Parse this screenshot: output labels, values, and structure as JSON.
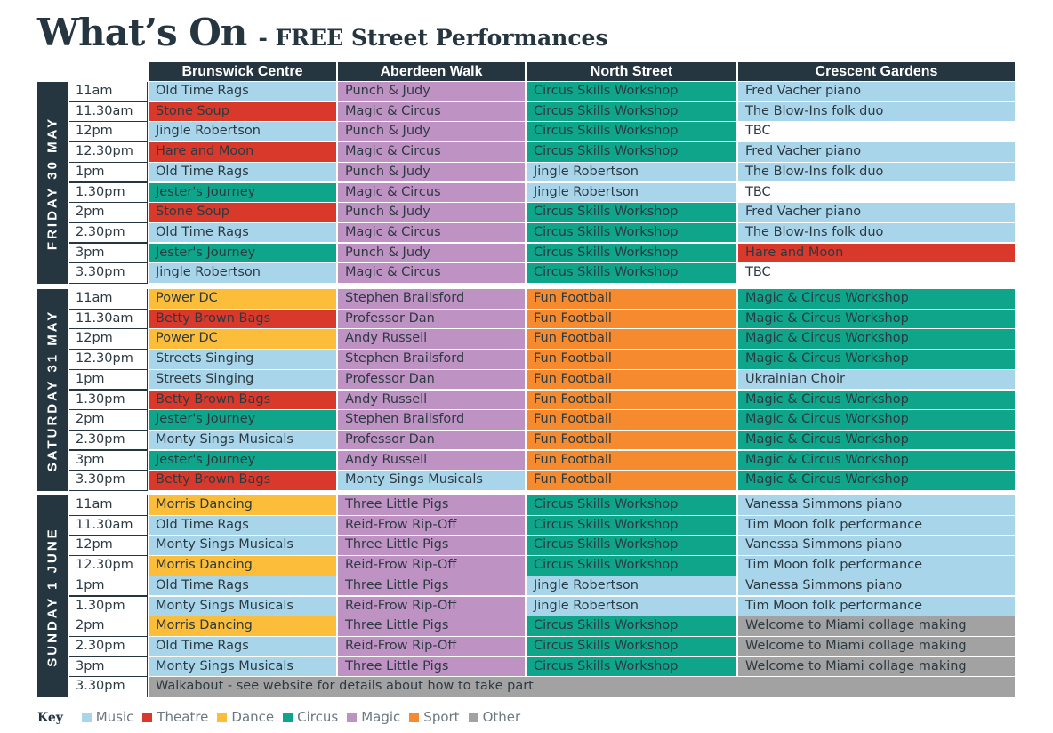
{
  "title": "What’s On",
  "subtitle": "- FREE Street Performances",
  "venues": [
    "Brunswick Centre",
    "Aberdeen Walk",
    "North Street",
    "Crescent Gardens"
  ],
  "colors": {
    "music": "#a8d5ea",
    "theatre": "#d9392b",
    "dance": "#fbbd3a",
    "circus": "#0fa58b",
    "magic": "#bf92c4",
    "sport": "#f58a2e",
    "other": "#a3a2a3",
    "header": "#263640"
  },
  "days": [
    {
      "label": "FRIDAY 30 MAY",
      "rows": [
        {
          "time": "11am",
          "cells": [
            {
              "text": "Old Time Rags",
              "cat": "music"
            },
            {
              "text": "Punch & Judy",
              "cat": "magic"
            },
            {
              "text": "Circus Skills Workshop",
              "cat": "circus"
            },
            {
              "text": "Fred Vacher piano",
              "cat": "music"
            }
          ]
        },
        {
          "time": "11.30am",
          "cells": [
            {
              "text": "Stone Soup",
              "cat": "theatre"
            },
            {
              "text": "Magic & Circus",
              "cat": "magic"
            },
            {
              "text": "Circus Skills Workshop",
              "cat": "circus"
            },
            {
              "text": "The Blow-Ins folk duo",
              "cat": "music"
            }
          ]
        },
        {
          "time": "12pm",
          "cells": [
            {
              "text": "Jingle Robertson",
              "cat": "music"
            },
            {
              "text": "Punch & Judy",
              "cat": "magic"
            },
            {
              "text": "Circus Skills Workshop",
              "cat": "circus"
            },
            {
              "text": "TBC",
              "cat": "blank"
            }
          ]
        },
        {
          "time": "12.30pm",
          "cells": [
            {
              "text": "Hare and Moon",
              "cat": "theatre"
            },
            {
              "text": "Magic & Circus",
              "cat": "magic"
            },
            {
              "text": "Circus Skills Workshop",
              "cat": "circus"
            },
            {
              "text": "Fred Vacher piano",
              "cat": "music"
            }
          ]
        },
        {
          "time": "1pm",
          "cells": [
            {
              "text": "Old Time Rags",
              "cat": "music"
            },
            {
              "text": "Punch & Judy",
              "cat": "magic"
            },
            {
              "text": "Jingle Robertson",
              "cat": "music"
            },
            {
              "text": "The Blow-Ins folk duo",
              "cat": "music"
            }
          ]
        },
        {
          "time": "1.30pm",
          "cells": [
            {
              "text": "Jester's Journey",
              "cat": "circus"
            },
            {
              "text": "Magic & Circus",
              "cat": "magic"
            },
            {
              "text": "Jingle Robertson",
              "cat": "music"
            },
            {
              "text": "TBC",
              "cat": "blank"
            }
          ]
        },
        {
          "time": "2pm",
          "cells": [
            {
              "text": "Stone Soup",
              "cat": "theatre"
            },
            {
              "text": "Punch & Judy",
              "cat": "magic"
            },
            {
              "text": "Circus Skills Workshop",
              "cat": "circus"
            },
            {
              "text": "Fred Vacher piano",
              "cat": "music"
            }
          ]
        },
        {
          "time": "2.30pm",
          "cells": [
            {
              "text": "Old Time Rags",
              "cat": "music"
            },
            {
              "text": "Magic & Circus",
              "cat": "magic"
            },
            {
              "text": "Circus Skills Workshop",
              "cat": "circus"
            },
            {
              "text": "The Blow-Ins folk duo",
              "cat": "music"
            }
          ]
        },
        {
          "time": "3pm",
          "cells": [
            {
              "text": "Jester's Journey",
              "cat": "circus"
            },
            {
              "text": "Punch & Judy",
              "cat": "magic"
            },
            {
              "text": "Circus Skills Workshop",
              "cat": "circus"
            },
            {
              "text": "Hare and Moon",
              "cat": "theatre"
            }
          ]
        },
        {
          "time": "3.30pm",
          "cells": [
            {
              "text": "Jingle Robertson",
              "cat": "music"
            },
            {
              "text": "Magic & Circus",
              "cat": "magic"
            },
            {
              "text": "Circus Skills Workshop",
              "cat": "circus"
            },
            {
              "text": "TBC",
              "cat": "blank"
            }
          ]
        }
      ]
    },
    {
      "label": "SATURDAY 31 MAY",
      "rows": [
        {
          "time": "11am",
          "cells": [
            {
              "text": "Power DC",
              "cat": "dance"
            },
            {
              "text": "Stephen Brailsford",
              "cat": "magic"
            },
            {
              "text": "Fun Football",
              "cat": "sport"
            },
            {
              "text": "Magic & Circus Workshop",
              "cat": "circus"
            }
          ]
        },
        {
          "time": "11.30am",
          "cells": [
            {
              "text": "Betty Brown Bags",
              "cat": "theatre"
            },
            {
              "text": "Professor Dan",
              "cat": "magic"
            },
            {
              "text": "Fun Football",
              "cat": "sport"
            },
            {
              "text": "Magic & Circus Workshop",
              "cat": "circus"
            }
          ]
        },
        {
          "time": "12pm",
          "cells": [
            {
              "text": "Power DC",
              "cat": "dance"
            },
            {
              "text": "Andy Russell",
              "cat": "magic"
            },
            {
              "text": "Fun Football",
              "cat": "sport"
            },
            {
              "text": "Magic & Circus Workshop",
              "cat": "circus"
            }
          ]
        },
        {
          "time": "12.30pm",
          "cells": [
            {
              "text": "Streets Singing",
              "cat": "music"
            },
            {
              "text": "Stephen Brailsford",
              "cat": "magic"
            },
            {
              "text": "Fun Football",
              "cat": "sport"
            },
            {
              "text": "Magic & Circus Workshop",
              "cat": "circus"
            }
          ]
        },
        {
          "time": "1pm",
          "cells": [
            {
              "text": "Streets Singing",
              "cat": "music"
            },
            {
              "text": "Professor Dan",
              "cat": "magic"
            },
            {
              "text": "Fun Football",
              "cat": "sport"
            },
            {
              "text": "Ukrainian Choir",
              "cat": "music"
            }
          ]
        },
        {
          "time": "1.30pm",
          "cells": [
            {
              "text": "Betty Brown Bags",
              "cat": "theatre"
            },
            {
              "text": "Andy Russell",
              "cat": "magic"
            },
            {
              "text": "Fun Football",
              "cat": "sport"
            },
            {
              "text": "Magic & Circus Workshop",
              "cat": "circus"
            }
          ]
        },
        {
          "time": "2pm",
          "cells": [
            {
              "text": "Jester's Journey",
              "cat": "circus"
            },
            {
              "text": "Stephen Brailsford",
              "cat": "magic"
            },
            {
              "text": "Fun Football",
              "cat": "sport"
            },
            {
              "text": "Magic & Circus Workshop",
              "cat": "circus"
            }
          ]
        },
        {
          "time": "2.30pm",
          "cells": [
            {
              "text": "Monty Sings Musicals",
              "cat": "music"
            },
            {
              "text": "Professor Dan",
              "cat": "magic"
            },
            {
              "text": "Fun Football",
              "cat": "sport"
            },
            {
              "text": "Magic & Circus Workshop",
              "cat": "circus"
            }
          ]
        },
        {
          "time": "3pm",
          "cells": [
            {
              "text": "Jester's Journey",
              "cat": "circus"
            },
            {
              "text": "Andy Russell",
              "cat": "magic"
            },
            {
              "text": "Fun Football",
              "cat": "sport"
            },
            {
              "text": "Magic & Circus Workshop",
              "cat": "circus"
            }
          ]
        },
        {
          "time": "3.30pm",
          "cells": [
            {
              "text": "Betty Brown Bags",
              "cat": "theatre"
            },
            {
              "text": "Monty Sings Musicals",
              "cat": "music"
            },
            {
              "text": "Fun Football",
              "cat": "sport"
            },
            {
              "text": "Magic & Circus Workshop",
              "cat": "circus"
            }
          ]
        }
      ]
    },
    {
      "label": "SUNDAY 1 JUNE",
      "rows": [
        {
          "time": "11am",
          "cells": [
            {
              "text": "Morris Dancing",
              "cat": "dance"
            },
            {
              "text": "Three Little Pigs",
              "cat": "magic"
            },
            {
              "text": "Circus Skills Workshop",
              "cat": "circus"
            },
            {
              "text": "Vanessa Simmons piano",
              "cat": "music"
            }
          ]
        },
        {
          "time": "11.30am",
          "cells": [
            {
              "text": "Old Time Rags",
              "cat": "music"
            },
            {
              "text": "Reid-Frow Rip-Off",
              "cat": "magic"
            },
            {
              "text": "Circus Skills Workshop",
              "cat": "circus"
            },
            {
              "text": "Tim Moon folk performance",
              "cat": "music"
            }
          ]
        },
        {
          "time": "12pm",
          "cells": [
            {
              "text": "Monty Sings Musicals",
              "cat": "music"
            },
            {
              "text": "Three Little Pigs",
              "cat": "magic"
            },
            {
              "text": "Circus Skills Workshop",
              "cat": "circus"
            },
            {
              "text": "Vanessa Simmons piano",
              "cat": "music"
            }
          ]
        },
        {
          "time": "12.30pm",
          "cells": [
            {
              "text": "Morris Dancing",
              "cat": "dance"
            },
            {
              "text": "Reid-Frow Rip-Off",
              "cat": "magic"
            },
            {
              "text": "Circus Skills Workshop",
              "cat": "circus"
            },
            {
              "text": "Tim Moon folk performance",
              "cat": "music"
            }
          ]
        },
        {
          "time": "1pm",
          "cells": [
            {
              "text": "Old Time Rags",
              "cat": "music"
            },
            {
              "text": "Three Little Pigs",
              "cat": "magic"
            },
            {
              "text": "Jingle Robertson",
              "cat": "music"
            },
            {
              "text": "Vanessa Simmons piano",
              "cat": "music"
            }
          ]
        },
        {
          "time": "1.30pm",
          "cells": [
            {
              "text": "Monty Sings Musicals",
              "cat": "music"
            },
            {
              "text": "Reid-Frow Rip-Off",
              "cat": "magic"
            },
            {
              "text": "Jingle Robertson",
              "cat": "music"
            },
            {
              "text": "Tim Moon folk performance",
              "cat": "music"
            }
          ]
        },
        {
          "time": "2pm",
          "cells": [
            {
              "text": "Morris Dancing",
              "cat": "dance"
            },
            {
              "text": "Three Little Pigs",
              "cat": "magic"
            },
            {
              "text": "Circus Skills Workshop",
              "cat": "circus"
            },
            {
              "text": "Welcome to Miami collage making",
              "cat": "other"
            }
          ]
        },
        {
          "time": "2.30pm",
          "cells": [
            {
              "text": "Old Time Rags",
              "cat": "music"
            },
            {
              "text": "Reid-Frow Rip-Off",
              "cat": "magic"
            },
            {
              "text": "Circus Skills Workshop",
              "cat": "circus"
            },
            {
              "text": "Welcome to Miami collage making",
              "cat": "other"
            }
          ]
        },
        {
          "time": "3pm",
          "cells": [
            {
              "text": "Monty Sings Musicals",
              "cat": "music"
            },
            {
              "text": "Three Little Pigs",
              "cat": "magic"
            },
            {
              "text": "Circus Skills Workshop",
              "cat": "circus"
            },
            {
              "text": "Welcome to Miami collage making",
              "cat": "other"
            }
          ]
        },
        {
          "time": "3.30pm",
          "span": {
            "text": "Walkabout - see website for details about how to take part",
            "cat": "other"
          }
        }
      ]
    }
  ],
  "key": {
    "title": "Key",
    "items": [
      {
        "label": "Music",
        "cat": "music"
      },
      {
        "label": "Theatre",
        "cat": "theatre"
      },
      {
        "label": "Dance",
        "cat": "dance"
      },
      {
        "label": "Circus",
        "cat": "circus"
      },
      {
        "label": "Magic",
        "cat": "magic"
      },
      {
        "label": "Sport",
        "cat": "sport"
      },
      {
        "label": "Other",
        "cat": "other"
      }
    ]
  }
}
